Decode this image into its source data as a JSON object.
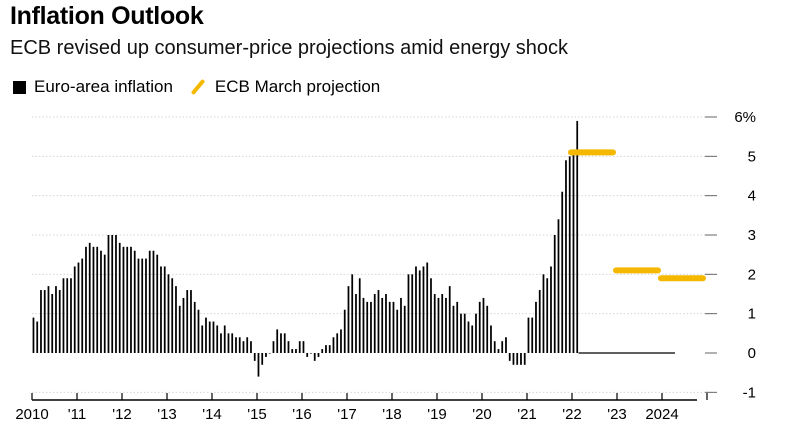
{
  "chart_data": {
    "type": "bar",
    "title": "Inflation Outlook",
    "subtitle": "ECB revised up consumer-price projections amid energy shock",
    "legend": [
      {
        "label": "Euro-area inflation",
        "color": "#000000",
        "kind": "bar"
      },
      {
        "label": "ECB March projection",
        "color": "#f5b800",
        "kind": "line"
      }
    ],
    "legend_position": "top-left",
    "y_axis": {
      "position": "right",
      "ylim": [
        -1,
        6
      ],
      "ticks": [
        -1,
        0,
        1,
        2,
        3,
        4,
        5,
        6
      ],
      "tick_labels": [
        "-1",
        "0",
        "1",
        "2",
        "3",
        "4",
        "5",
        "6%"
      ]
    },
    "x_axis": {
      "start_year": 2010,
      "end_year": 2025,
      "ticks": [
        2010,
        2011,
        2012,
        2013,
        2014,
        2015,
        2016,
        2017,
        2018,
        2019,
        2020,
        2021,
        2022,
        2023,
        2024
      ],
      "tick_labels": [
        "2010",
        "'11",
        "'12",
        "'13",
        "'14",
        "'15",
        "'16",
        "'17",
        "'18",
        "'19",
        "'20",
        "'21",
        "'22",
        "'23",
        "2024"
      ]
    },
    "grid": "horizontal",
    "series": [
      {
        "name": "Euro-area inflation",
        "start": "2010-01",
        "frequency": "monthly",
        "values": [
          0.9,
          0.8,
          1.6,
          1.6,
          1.7,
          1.5,
          1.7,
          1.6,
          1.9,
          1.9,
          1.9,
          2.2,
          2.3,
          2.4,
          2.7,
          2.8,
          2.7,
          2.7,
          2.6,
          2.5,
          3.0,
          3.0,
          3.0,
          2.8,
          2.7,
          2.7,
          2.7,
          2.6,
          2.4,
          2.4,
          2.4,
          2.6,
          2.6,
          2.5,
          2.2,
          2.2,
          2.0,
          1.9,
          1.7,
          1.2,
          1.4,
          1.6,
          1.6,
          1.3,
          1.1,
          0.7,
          0.9,
          0.8,
          0.8,
          0.7,
          0.5,
          0.7,
          0.5,
          0.5,
          0.4,
          0.4,
          0.3,
          0.4,
          0.3,
          -0.2,
          -0.6,
          -0.3,
          -0.1,
          0.0,
          0.3,
          0.6,
          0.5,
          0.5,
          0.3,
          0.1,
          0.1,
          0.3,
          0.3,
          -0.1,
          0.0,
          -0.2,
          -0.1,
          0.1,
          0.2,
          0.2,
          0.4,
          0.5,
          0.6,
          1.1,
          1.7,
          2.0,
          1.5,
          1.9,
          1.4,
          1.3,
          1.3,
          1.5,
          1.6,
          1.4,
          1.5,
          1.3,
          1.3,
          1.1,
          1.4,
          1.2,
          2.0,
          2.0,
          2.2,
          2.1,
          2.2,
          2.3,
          1.9,
          1.5,
          1.4,
          1.5,
          1.4,
          1.7,
          1.2,
          1.3,
          1.0,
          1.0,
          0.8,
          0.7,
          1.0,
          1.3,
          1.4,
          1.2,
          0.7,
          0.3,
          0.1,
          0.3,
          0.4,
          -0.2,
          -0.3,
          -0.3,
          -0.3,
          -0.3,
          0.9,
          0.9,
          1.3,
          1.6,
          2.0,
          1.9,
          2.2,
          3.0,
          3.4,
          4.1,
          4.9,
          5.0,
          5.1,
          5.9
        ]
      },
      {
        "name": "ECB March projection",
        "segments": [
          {
            "year": 2022,
            "value": 5.1
          },
          {
            "year": 2023,
            "value": 2.1
          },
          {
            "year": 2024,
            "value": 1.9
          }
        ]
      }
    ]
  }
}
